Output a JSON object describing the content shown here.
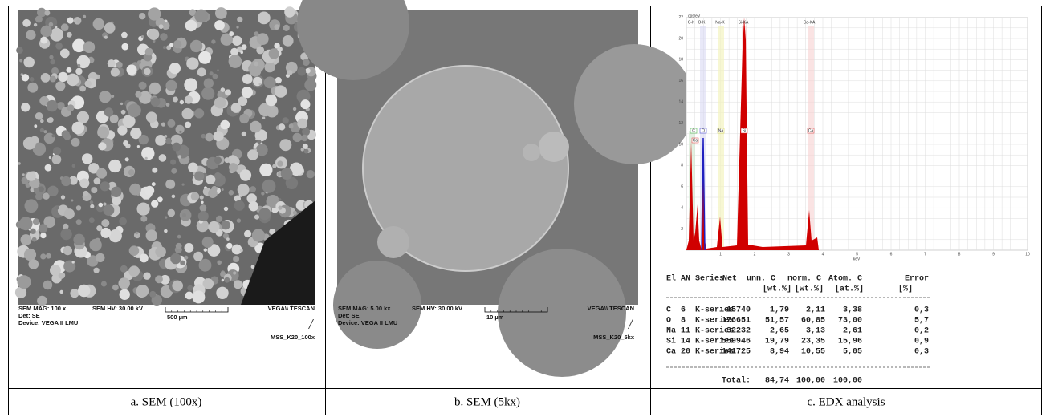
{
  "panels": [
    {
      "mag": "SEM MAG: 100 x",
      "hv": "SEM HV: 30.00 kV",
      "det": "Det: SE",
      "device": "Device: VEGA II LMU",
      "scale": "500 µm",
      "brand": "VEGA\\\\ TESCAN",
      "file": "MSS_K20_100x",
      "caption": "a. SEM (100x)"
    },
    {
      "mag": "SEM MAG: 5.00 kx",
      "hv": "SEM HV: 30.00 kV",
      "det": "Det: SE",
      "device": "Device: VEGA II LMU",
      "scale": "10 µm",
      "brand": "VEGA\\\\ TESCAN",
      "file": "MSS_K20_5kx",
      "caption": "b. SEM (5kx)"
    },
    {
      "caption": "c. EDX analysis"
    }
  ],
  "edx": {
    "y_unit": "cps/eV",
    "x_unit": "keV",
    "yticks": [
      "2",
      "4",
      "6",
      "8",
      "10",
      "12",
      "14",
      "16",
      "18",
      "20",
      "22"
    ],
    "xticks": [
      "1",
      "2",
      "3",
      "4",
      "5",
      "6",
      "7",
      "8",
      "9",
      "10"
    ],
    "lines": [
      "C-K",
      "O-K",
      "Na-K",
      "Si-KA",
      "Ca-KA"
    ],
    "markers": [
      "C",
      "Ca",
      "O",
      "Na",
      "Si",
      "Ca"
    ],
    "header": [
      "El",
      "AN",
      "Series",
      "Net",
      "unn. C",
      "norm. C",
      "Atom. C",
      "Error"
    ],
    "units": [
      "[wt.%]",
      "[wt.%]",
      "[at.%]",
      "[%]"
    ],
    "rows": [
      [
        "C",
        "6",
        "K-series",
        "15740",
        "1,79",
        "2,11",
        "3,38",
        "0,3"
      ],
      [
        "O",
        "8",
        "K-series",
        "176651",
        "51,57",
        "60,85",
        "73,00",
        "5,7"
      ],
      [
        "Na",
        "11",
        "K-series",
        "32232",
        "2,65",
        "3,13",
        "2,61",
        "0,2"
      ],
      [
        "Si",
        "14",
        "K-series",
        "559946",
        "19,79",
        "23,35",
        "15,96",
        "0,9"
      ],
      [
        "Ca",
        "20",
        "K-series",
        "141725",
        "8,94",
        "10,55",
        "5,05",
        "0,3"
      ]
    ],
    "total": [
      "Total:",
      "84,74",
      "100,00",
      "100,00"
    ]
  }
}
